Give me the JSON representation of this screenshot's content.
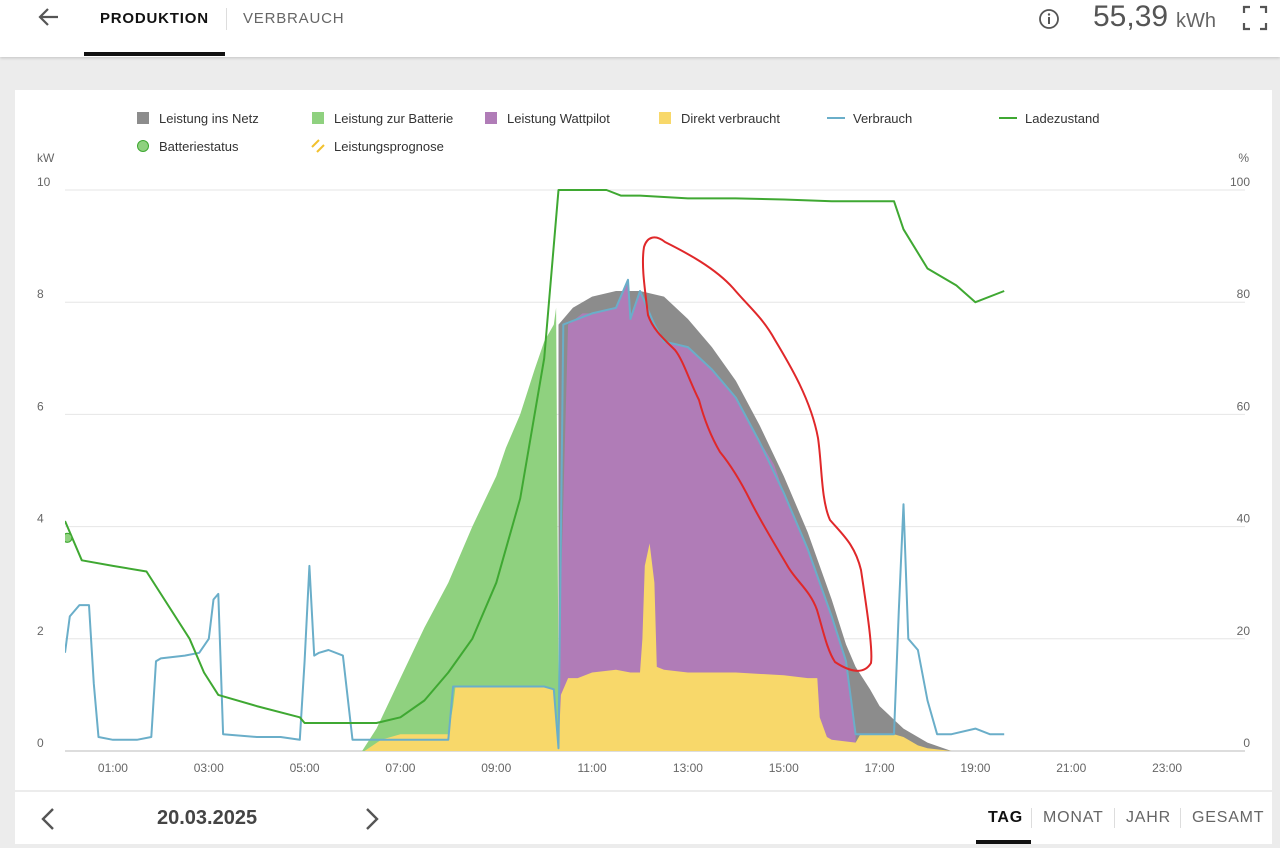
{
  "header": {
    "tabs": [
      {
        "label": "PRODUKTION",
        "active": true
      },
      {
        "label": "VERBRAUCH",
        "active": false
      }
    ],
    "total_value": "55,39",
    "total_unit": "kWh",
    "icons": [
      "back-arrow-icon",
      "info-icon",
      "fullscreen-icon"
    ]
  },
  "legend": [
    {
      "label": "Leistung ins Netz",
      "color": "#8c8c8c",
      "marker": "square"
    },
    {
      "label": "Leistung zur Batterie",
      "color": "#8fd17f",
      "marker": "square"
    },
    {
      "label": "Leistung Wattpilot",
      "color": "#b07cb7",
      "marker": "square"
    },
    {
      "label": "Direkt verbraucht",
      "color": "#f8d86a",
      "marker": "square"
    },
    {
      "label": "Verbrauch",
      "color": "#6aaec9",
      "marker": "line"
    },
    {
      "label": "Ladezustand",
      "color": "#3fa832",
      "marker": "line"
    },
    {
      "label": "Batteriestatus",
      "color": "#8fd17f",
      "marker": "circle"
    },
    {
      "label": "Leistungsprognose",
      "color": "#f2c12e",
      "marker": "hatch"
    }
  ],
  "chart_data": {
    "type": "area",
    "x_unit": "hours",
    "xlim": [
      0,
      24
    ],
    "x_ticks": [
      "01:00",
      "03:00",
      "05:00",
      "07:00",
      "09:00",
      "11:00",
      "13:00",
      "15:00",
      "17:00",
      "19:00",
      "21:00",
      "23:00"
    ],
    "y_left": {
      "label": "kW",
      "ticks": [
        "0",
        "2",
        "4",
        "6",
        "8",
        "10"
      ],
      "lim": [
        0,
        10
      ]
    },
    "y_right": {
      "label": "%",
      "ticks": [
        "0",
        "20",
        "40",
        "60",
        "80",
        "100"
      ],
      "lim": [
        0,
        100
      ]
    },
    "grid": true,
    "legend_position": "top",
    "annotation": "red freehand outline around the afternoon production curve",
    "series": [
      {
        "name": "Direkt verbraucht",
        "kind": "area",
        "color": "#f8d86a",
        "x": [
          6.25,
          6.6,
          7.0,
          7.5,
          8.0,
          8.1,
          8.15,
          9.0,
          10.0,
          10.2,
          10.3,
          10.35,
          10.5,
          10.7,
          11.0,
          11.5,
          11.8,
          12.0,
          12.05,
          12.1,
          12.2,
          12.3,
          12.35,
          12.5,
          13.0,
          14.0,
          15.0,
          15.5,
          15.7,
          15.75,
          15.9,
          16.0,
          16.5,
          16.6,
          17.0,
          17.3,
          17.5,
          17.8,
          18.0,
          18.3,
          18.5
        ],
        "y": [
          0,
          0.2,
          0.3,
          0.3,
          0.3,
          0.8,
          1.15,
          1.15,
          1.15,
          1.1,
          0.05,
          1.0,
          1.3,
          1.3,
          1.4,
          1.45,
          1.4,
          1.4,
          2.0,
          3.3,
          3.7,
          3.0,
          1.5,
          1.45,
          1.4,
          1.4,
          1.35,
          1.3,
          1.3,
          0.6,
          0.25,
          0.2,
          0.15,
          0.3,
          0.3,
          0.3,
          0.25,
          0.1,
          0.05,
          0.02,
          0
        ]
      },
      {
        "name": "Leistung zur Batterie",
        "kind": "area",
        "color": "#8fd17f",
        "x": [
          6.2,
          6.5,
          7.0,
          7.5,
          8.0,
          8.5,
          9.0,
          9.2,
          9.5,
          9.8,
          10.0,
          10.2,
          10.25,
          10.3
        ],
        "y": [
          0,
          0.4,
          1.3,
          2.2,
          3.0,
          4.0,
          4.9,
          5.4,
          6.0,
          6.8,
          7.3,
          7.6,
          7.9,
          1.3
        ]
      },
      {
        "name": "Leistung Wattpilot",
        "kind": "area",
        "color": "#b07cb7",
        "x": [
          10.3,
          10.5,
          10.8,
          11.0,
          11.5,
          11.75,
          11.8,
          12.0,
          12.3,
          12.5,
          13.0,
          13.5,
          14.0,
          14.3,
          14.8,
          15.0,
          15.5,
          16.0,
          16.3,
          16.5
        ],
        "y": [
          1.3,
          7.6,
          7.8,
          7.8,
          7.9,
          8.4,
          7.7,
          8.2,
          7.6,
          7.3,
          7.2,
          6.8,
          6.3,
          5.8,
          5.1,
          4.6,
          3.6,
          2.4,
          1.6,
          0.3
        ]
      },
      {
        "name": "Leistung ins Netz",
        "kind": "area",
        "color": "#8c8c8c",
        "x": [
          10.3,
          10.6,
          11.0,
          11.5,
          12.0,
          12.5,
          13.0,
          13.5,
          14.0,
          14.5,
          15.0,
          15.5,
          16.0,
          16.3,
          16.5,
          16.8,
          17.0,
          17.5,
          18.0,
          18.5
        ],
        "y": [
          7.6,
          7.9,
          8.1,
          8.2,
          8.2,
          8.1,
          7.7,
          7.2,
          6.6,
          5.8,
          4.9,
          3.9,
          2.7,
          1.9,
          1.5,
          1.1,
          0.8,
          0.4,
          0.15,
          0
        ]
      },
      {
        "name": "Verbrauch",
        "kind": "line",
        "color": "#6aaec9",
        "x": [
          0,
          0.1,
          0.3,
          0.5,
          0.6,
          0.7,
          1.0,
          1.5,
          1.8,
          1.9,
          2.0,
          2.5,
          2.8,
          3.0,
          3.1,
          3.2,
          3.3,
          4.0,
          4.5,
          4.9,
          5.0,
          5.1,
          5.2,
          5.3,
          5.5,
          5.8,
          6.0,
          6.5,
          7.0,
          7.5,
          8.0,
          8.1,
          9.0,
          10.0,
          10.2,
          10.3,
          10.4,
          11.0,
          11.5,
          11.75,
          11.8,
          12.0,
          12.3,
          12.5,
          13.0,
          13.5,
          14.0,
          14.5,
          15.0,
          15.5,
          16.0,
          16.3,
          16.5,
          17.0,
          17.3,
          17.4,
          17.5,
          17.6,
          17.8,
          18.0,
          18.2,
          18.5,
          19.0,
          19.3,
          19.6
        ],
        "y": [
          1.75,
          2.4,
          2.6,
          2.6,
          1.2,
          0.25,
          0.2,
          0.2,
          0.25,
          1.6,
          1.65,
          1.7,
          1.75,
          2.0,
          2.7,
          2.8,
          0.3,
          0.25,
          0.25,
          0.2,
          1.6,
          3.3,
          1.7,
          1.75,
          1.8,
          1.7,
          0.2,
          0.2,
          0.2,
          0.2,
          0.2,
          1.15,
          1.15,
          1.15,
          1.1,
          0.05,
          7.6,
          7.8,
          7.9,
          8.4,
          7.7,
          8.2,
          7.6,
          7.3,
          7.2,
          6.8,
          6.3,
          5.5,
          4.6,
          3.6,
          2.4,
          1.6,
          0.3,
          0.3,
          0.3,
          2.5,
          4.4,
          2.0,
          1.8,
          0.9,
          0.3,
          0.3,
          0.4,
          0.3,
          0.3
        ]
      },
      {
        "name": "Ladezustand",
        "kind": "line",
        "axis": "right",
        "color": "#3fa832",
        "x": [
          0,
          0.35,
          1.0,
          1.7,
          2.6,
          2.9,
          3.2,
          4.0,
          4.9,
          5.0,
          5.5,
          6.0,
          6.5,
          7.0,
          7.5,
          8.0,
          8.5,
          9.0,
          9.5,
          10.0,
          10.3,
          10.6,
          11.3,
          11.6,
          12.0,
          13.0,
          14.0,
          15.0,
          16.0,
          16.5,
          17.0,
          17.3,
          17.5,
          18.0,
          18.6,
          19.0,
          19.6
        ],
        "y": [
          41,
          34,
          33,
          32,
          20,
          14,
          10,
          8,
          6,
          5,
          5,
          5,
          5,
          6,
          9,
          14,
          20,
          30,
          45,
          70,
          100,
          100,
          100,
          99,
          99,
          98.5,
          98.5,
          98.3,
          98,
          98,
          98,
          98,
          93,
          86,
          83,
          80,
          82
        ]
      },
      {
        "name": "Batteriestatus",
        "kind": "marker",
        "axis": "right",
        "color": "#8fd17f",
        "x": [
          0.05
        ],
        "y": [
          38
        ]
      }
    ]
  }
}
